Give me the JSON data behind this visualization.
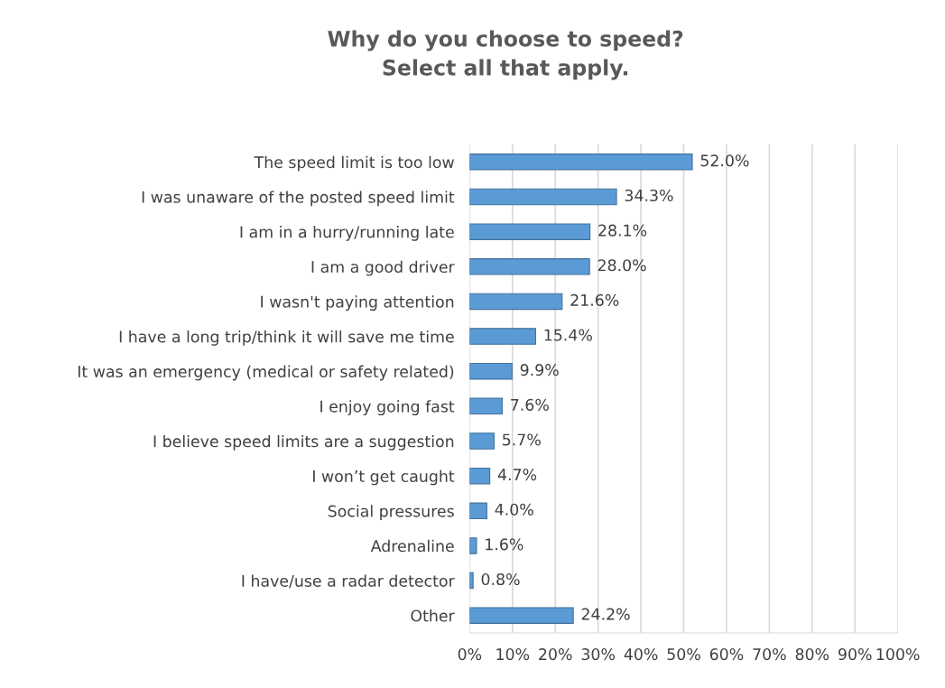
{
  "chart_data": {
    "type": "bar",
    "orientation": "horizontal",
    "title": "Why do you choose to speed?\nSelect all that apply.",
    "categories": [
      "The speed limit is too low",
      "I was unaware of the posted speed limit",
      "I am in a hurry/running late",
      "I am a good driver",
      "I wasn't paying attention",
      "I have a long trip/think it will save me time",
      "It was an emergency (medical or safety related)",
      "I enjoy going fast",
      "I believe speed limits are a suggestion",
      "I won’t get caught",
      "Social pressures",
      "Adrenaline",
      "I have/use a radar detector",
      "Other"
    ],
    "values": [
      52.0,
      34.3,
      28.1,
      28.0,
      21.6,
      15.4,
      9.9,
      7.6,
      5.7,
      4.7,
      4.0,
      1.6,
      0.8,
      24.2
    ],
    "value_labels": [
      "52.0%",
      "34.3%",
      "28.1%",
      "28.0%",
      "21.6%",
      "15.4%",
      "9.9%",
      "7.6%",
      "5.7%",
      "4.7%",
      "4.0%",
      "1.6%",
      "0.8%",
      "24.2%"
    ],
    "color": "#5b9bd5",
    "xlim": [
      0,
      100
    ],
    "xticks": [
      {
        "value": 0,
        "label": "0%"
      },
      {
        "value": 10,
        "label": "10%"
      },
      {
        "value": 20,
        "label": "20%"
      },
      {
        "value": 30,
        "label": "30%"
      },
      {
        "value": 40,
        "label": "40%"
      },
      {
        "value": 50,
        "label": "50%"
      },
      {
        "value": 60,
        "label": "60%"
      },
      {
        "value": 70,
        "label": "70%"
      },
      {
        "value": 80,
        "label": "80%"
      },
      {
        "value": 90,
        "label": "90%"
      },
      {
        "value": 100,
        "label": "100%"
      }
    ],
    "grid": "x"
  }
}
